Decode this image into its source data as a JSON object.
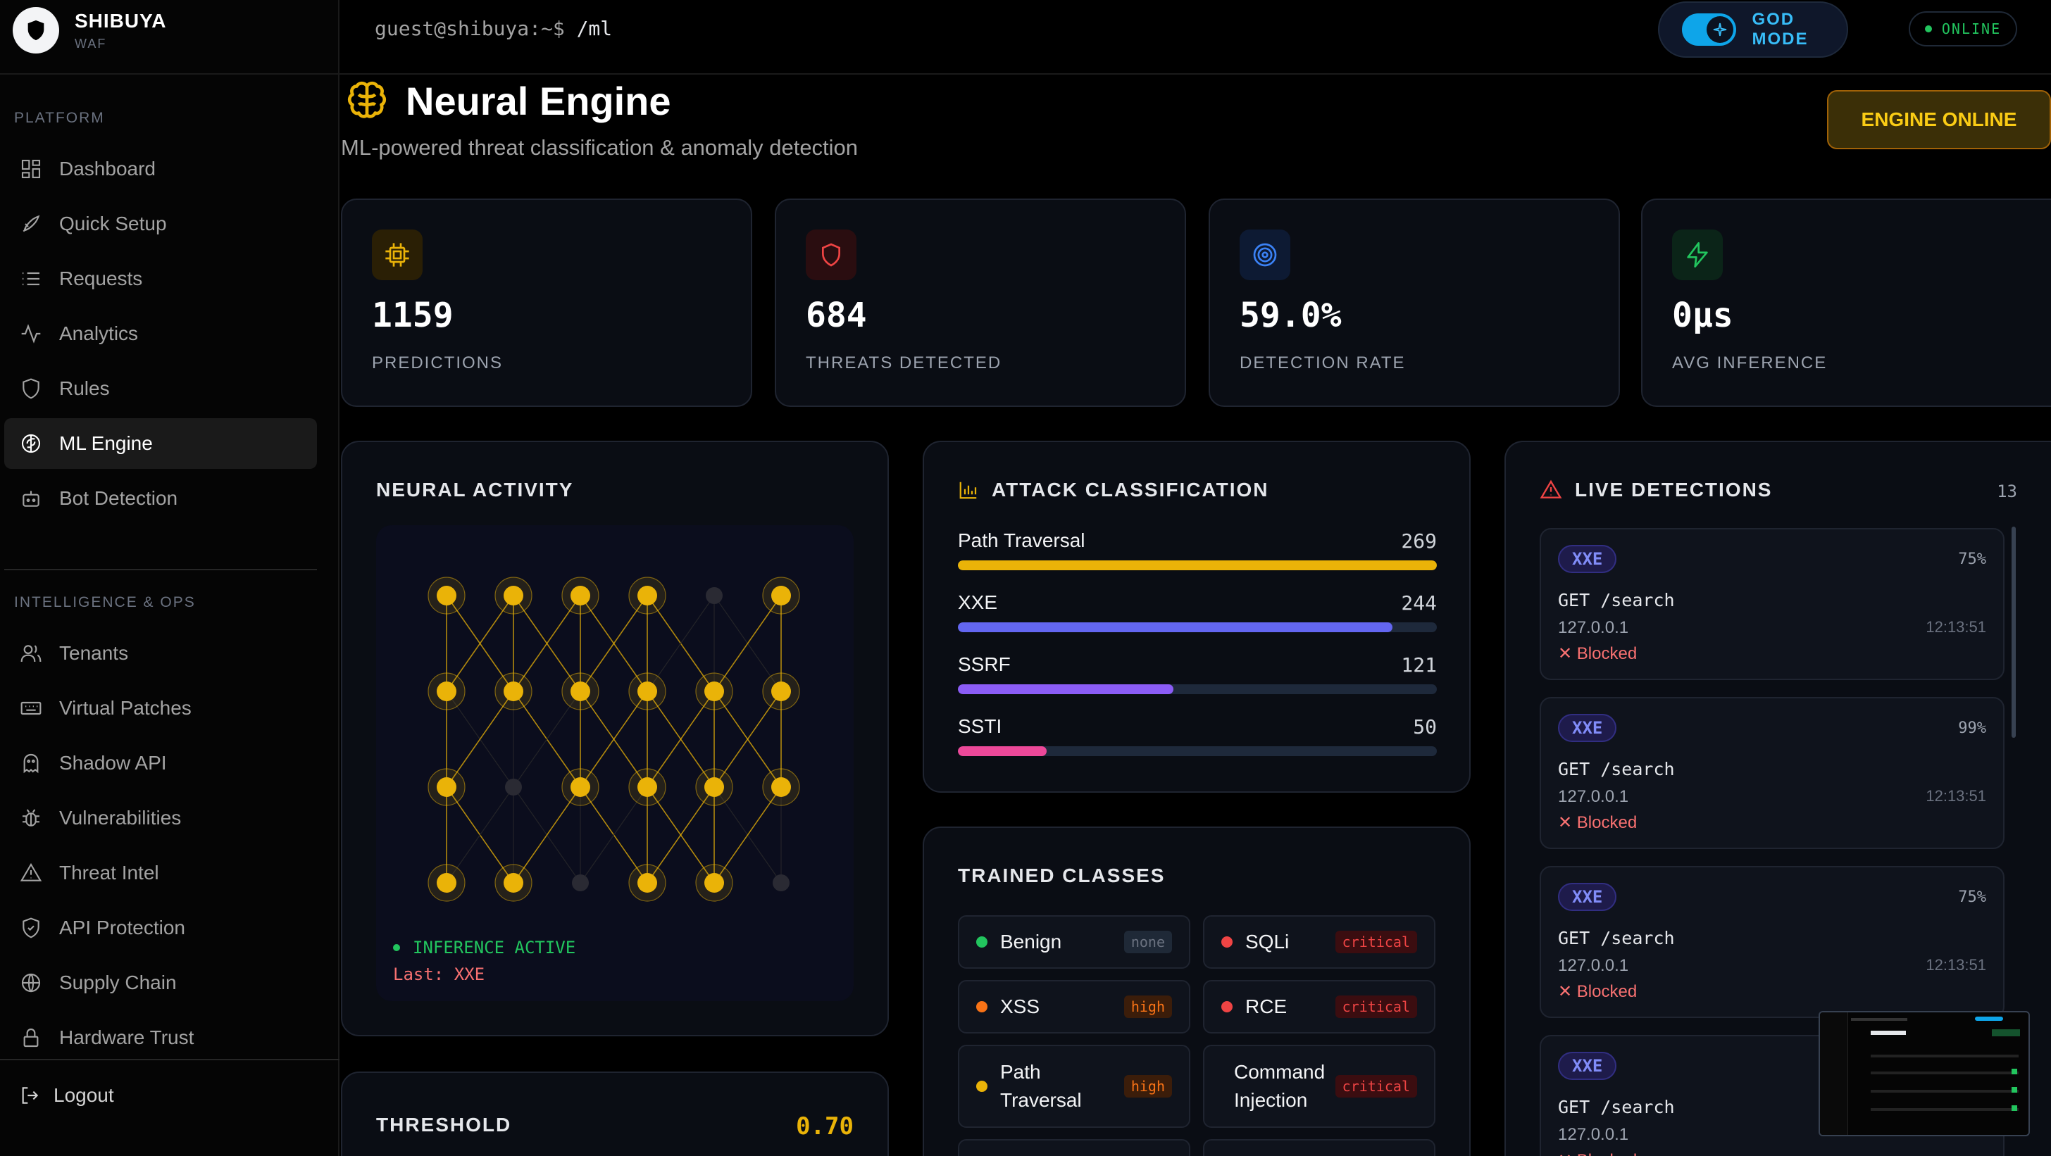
{
  "brand": {
    "name": "SHIBUYA",
    "sub": "WAF"
  },
  "sidebar": {
    "section1": "PLATFORM",
    "items1": [
      {
        "label": "Dashboard",
        "icon": "grid-icon"
      },
      {
        "label": "Quick Setup",
        "icon": "rocket-icon"
      },
      {
        "label": "Requests",
        "icon": "list-icon"
      },
      {
        "label": "Analytics",
        "icon": "activity-icon"
      },
      {
        "label": "Rules",
        "icon": "shield-icon"
      },
      {
        "label": "ML Engine",
        "icon": "brain-icon",
        "active": true
      },
      {
        "label": "Bot Detection",
        "icon": "bot-icon"
      }
    ],
    "section2": "INTELLIGENCE & OPS",
    "items2": [
      {
        "label": "Tenants",
        "icon": "users-icon"
      },
      {
        "label": "Virtual Patches",
        "icon": "keyboard-icon"
      },
      {
        "label": "Shadow API",
        "icon": "ghost-icon"
      },
      {
        "label": "Vulnerabilities",
        "icon": "bug-icon"
      },
      {
        "label": "Threat Intel",
        "icon": "alert-triangle-icon"
      },
      {
        "label": "API Protection",
        "icon": "shield-check-icon"
      },
      {
        "label": "Supply Chain",
        "icon": "globe-icon"
      },
      {
        "label": "Hardware Trust",
        "icon": "lock-icon"
      }
    ],
    "logout": "Logout"
  },
  "header": {
    "prompt": "guest@shibuya:~$",
    "command": "/ml",
    "god_mode": "GOD MODE",
    "status": "ONLINE"
  },
  "page": {
    "title": "Neural Engine",
    "subtitle": "ML-powered threat classification & anomaly detection",
    "engine_button": "ENGINE ONLINE"
  },
  "stats": [
    {
      "value": "1159",
      "label": "PREDICTIONS",
      "icon": "cpu-icon",
      "color": "#eab308"
    },
    {
      "value": "684",
      "label": "THREATS DETECTED",
      "icon": "shield-icon",
      "color": "#ef4444"
    },
    {
      "value": "59.0%",
      "label": "DETECTION RATE",
      "icon": "target-icon",
      "color": "#3b82f6"
    },
    {
      "value": "0µs",
      "label": "AVG INFERENCE",
      "icon": "zap-icon",
      "color": "#22c55e"
    }
  ],
  "neural": {
    "title": "NEURAL ACTIVITY",
    "status": "INFERENCE ACTIVE",
    "last": "Last: XXE",
    "layers": [
      [
        1,
        1,
        1,
        1,
        0,
        1
      ],
      [
        1,
        1,
        1,
        1,
        1,
        1
      ],
      [
        1,
        0,
        1,
        1,
        1,
        1
      ],
      [
        1,
        1,
        0,
        1,
        1,
        0
      ]
    ]
  },
  "attack": {
    "title": "ATTACK CLASSIFICATION",
    "rows": [
      {
        "label": "Path Traversal",
        "value": 269,
        "color": "#eab308"
      },
      {
        "label": "XXE",
        "value": 244,
        "color": "#6366f1"
      },
      {
        "label": "SSRF",
        "value": 121,
        "color": "#8b5cf6"
      },
      {
        "label": "SSTI",
        "value": 50,
        "color": "#ec4899"
      }
    ]
  },
  "classes": {
    "title": "TRAINED CLASSES",
    "items": [
      {
        "name": "Benign",
        "severity": "none",
        "color": "#22c55e"
      },
      {
        "name": "SQLi",
        "severity": "critical",
        "color": "#ef4444"
      },
      {
        "name": "XSS",
        "severity": "high",
        "color": "#f97316"
      },
      {
        "name": "RCE",
        "severity": "critical",
        "color": "#ef4444"
      },
      {
        "name": "Path Traversal",
        "severity": "high",
        "color": "#eab308"
      },
      {
        "name": "Command Injection",
        "severity": "critical",
        "color": ""
      }
    ]
  },
  "threshold": {
    "title": "THRESHOLD",
    "value": "0.70"
  },
  "live": {
    "title": "LIVE DETECTIONS",
    "count": "13",
    "items": [
      {
        "tag": "XXE",
        "pct": "75%",
        "request": "GET /search",
        "ip": "127.0.0.1",
        "time": "12:13:51",
        "status": "Blocked"
      },
      {
        "tag": "XXE",
        "pct": "99%",
        "request": "GET /search",
        "ip": "127.0.0.1",
        "time": "12:13:51",
        "status": "Blocked"
      },
      {
        "tag": "XXE",
        "pct": "75%",
        "request": "GET /search",
        "ip": "127.0.0.1",
        "time": "12:13:51",
        "status": "Blocked"
      },
      {
        "tag": "XXE",
        "pct": "",
        "request": "GET /search",
        "ip": "127.0.0.1",
        "time": "",
        "status": "Blocked"
      }
    ]
  }
}
